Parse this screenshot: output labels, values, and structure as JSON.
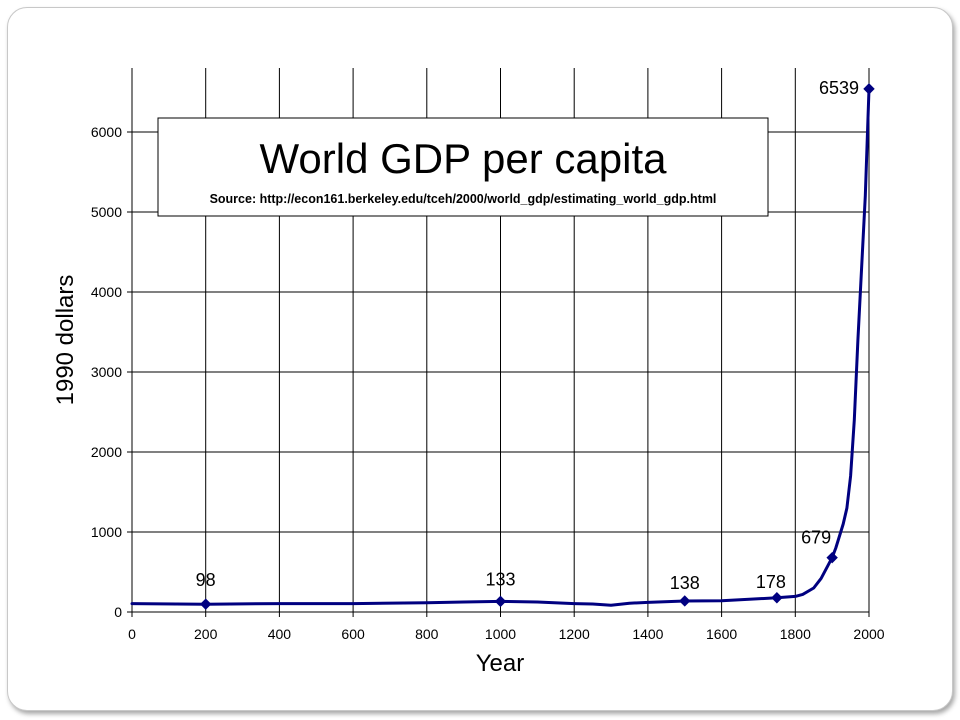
{
  "chart_data": {
    "type": "line",
    "title": "World GDP per capita",
    "subtitle": "Source: http://econ161.berkeley.edu/tceh/2000/world_gdp/estimating_world_gdp.html",
    "xlabel": "Year",
    "ylabel": "1990 dollars",
    "xlim": [
      0,
      2000
    ],
    "ylim": [
      0,
      6500
    ],
    "x_ticks": [
      0,
      200,
      400,
      600,
      800,
      1000,
      1200,
      1400,
      1600,
      1800,
      2000
    ],
    "y_ticks": [
      0,
      1000,
      2000,
      3000,
      4000,
      5000,
      6000
    ],
    "grid": true,
    "legend": false,
    "line_color": "#000080",
    "series": [
      {
        "x": [
          0,
          200,
          400,
          600,
          800,
          900,
          1000,
          1100,
          1200,
          1250,
          1300,
          1350,
          1400,
          1500,
          1600,
          1700,
          1750,
          1800,
          1820,
          1850,
          1870,
          1900,
          1910,
          1920,
          1930,
          1940,
          1950,
          1960,
          1970,
          1980,
          1990,
          2000
        ],
        "y": [
          105,
          98,
          105,
          105,
          115,
          125,
          133,
          125,
          105,
          100,
          85,
          110,
          120,
          138,
          140,
          165,
          178,
          195,
          220,
          300,
          420,
          679,
          800,
          950,
          1100,
          1300,
          1700,
          2400,
          3400,
          4300,
          5200,
          6539
        ]
      }
    ],
    "markers": [
      {
        "x": 200,
        "y": 98,
        "label": "98"
      },
      {
        "x": 1000,
        "y": 133,
        "label": "133"
      },
      {
        "x": 1500,
        "y": 138,
        "label": "138"
      },
      {
        "x": 1750,
        "y": 178,
        "label": "178"
      },
      {
        "x": 1900,
        "y": 679,
        "label": "679"
      },
      {
        "x": 2000,
        "y": 6539,
        "label": "6539"
      }
    ]
  }
}
